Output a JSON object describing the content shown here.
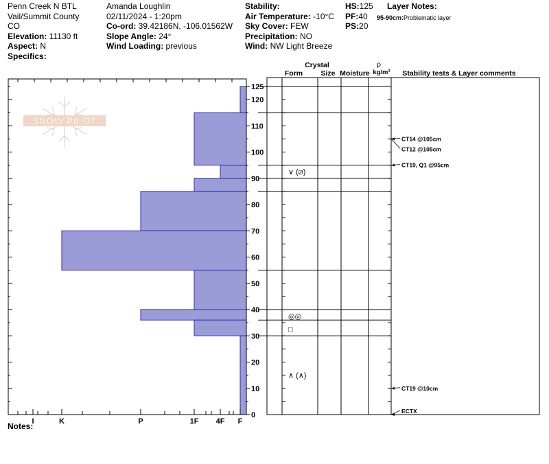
{
  "header": {
    "col1": {
      "location": "Penn Creek N BTL",
      "region": "Vail/Summit County",
      "state": "CO",
      "elevation_label": "Elevation:",
      "elevation": "11130 ft",
      "aspect_label": "Aspect:",
      "aspect": "N",
      "specifics_label": "Specifics:"
    },
    "col2": {
      "observer": "Amanda Loughlin",
      "datetime": "02/11/2024 - 1:20pm",
      "coord_label": "Co-ord:",
      "coord": "39.42186N, -106.01562W",
      "slope_label": "Slope Angle:",
      "slope": "24°",
      "wind_loading_label": "Wind Loading:",
      "wind_loading": "previous"
    },
    "col3": {
      "stability_label": "Stability:",
      "air_temp_label": "Air Temperature:",
      "air_temp": "-10°C",
      "sky_label": "Sky Cover:",
      "sky": "FEW",
      "precip_label": "Precipitation:",
      "precip": "NO",
      "wind_label": "Wind:",
      "wind": "NW Light Breeze"
    },
    "col4": {
      "hs_label": "HS:",
      "hs": "125",
      "pf_label": "PF:",
      "pf": "40",
      "ps_label": "PS:",
      "ps": "20"
    },
    "layer_notes": {
      "title": "Layer Notes:",
      "note_range": "95-90cm:",
      "note_text": "Problematic layer"
    }
  },
  "watermark": "SNOW PILOT",
  "notes_label": "Notes:",
  "table_headers": {
    "crystal": "Crystal",
    "form": "Form",
    "size": "Size",
    "moisture": "Moisture",
    "rho": "ρ",
    "density_unit": "kg/m³",
    "comments": "Stability tests & Layer comments"
  },
  "chart_data": {
    "type": "bar",
    "x_axis": {
      "direction": "right-to-left",
      "hardness_labels": [
        "I",
        "K",
        "P",
        "1F",
        "4F",
        "F"
      ]
    },
    "y_axis": {
      "label": "",
      "min": 0,
      "max": 125,
      "ticks": [
        0,
        10,
        20,
        30,
        40,
        50,
        60,
        70,
        80,
        90,
        100,
        110,
        120,
        125
      ]
    },
    "layers": [
      {
        "top": 125,
        "bottom": 115,
        "hardness": "F"
      },
      {
        "top": 115,
        "bottom": 95,
        "hardness": "1F"
      },
      {
        "top": 95,
        "bottom": 90,
        "hardness": "1F-"
      },
      {
        "top": 90,
        "bottom": 85,
        "hardness": "1F"
      },
      {
        "top": 85,
        "bottom": 70,
        "hardness": "P"
      },
      {
        "top": 70,
        "bottom": 55,
        "hardness": "K"
      },
      {
        "top": 55,
        "bottom": 40,
        "hardness": "1F"
      },
      {
        "top": 40,
        "bottom": 36,
        "hardness": "P"
      },
      {
        "top": 36,
        "bottom": 30,
        "hardness": "1F"
      },
      {
        "top": 30,
        "bottom": 0,
        "hardness": "F"
      }
    ],
    "crystal_forms": [
      {
        "depth": 92.5,
        "symbol": "∨ (⧄)"
      },
      {
        "depth": 37.5,
        "symbol": "◎◎"
      },
      {
        "depth": 32.5,
        "symbol": "□"
      },
      {
        "depth": 15,
        "symbol": "∧ (∧)"
      }
    ],
    "stability_tests": [
      {
        "depth": 105,
        "text": "CT14 @105cm"
      },
      {
        "depth": 105,
        "text": "CT12 @105cm"
      },
      {
        "depth": 95,
        "text": "CT19, Q1 @95cm"
      },
      {
        "depth": 10,
        "text": "CT19 @10cm"
      },
      {
        "depth": 0,
        "text": "ECTX"
      }
    ]
  }
}
